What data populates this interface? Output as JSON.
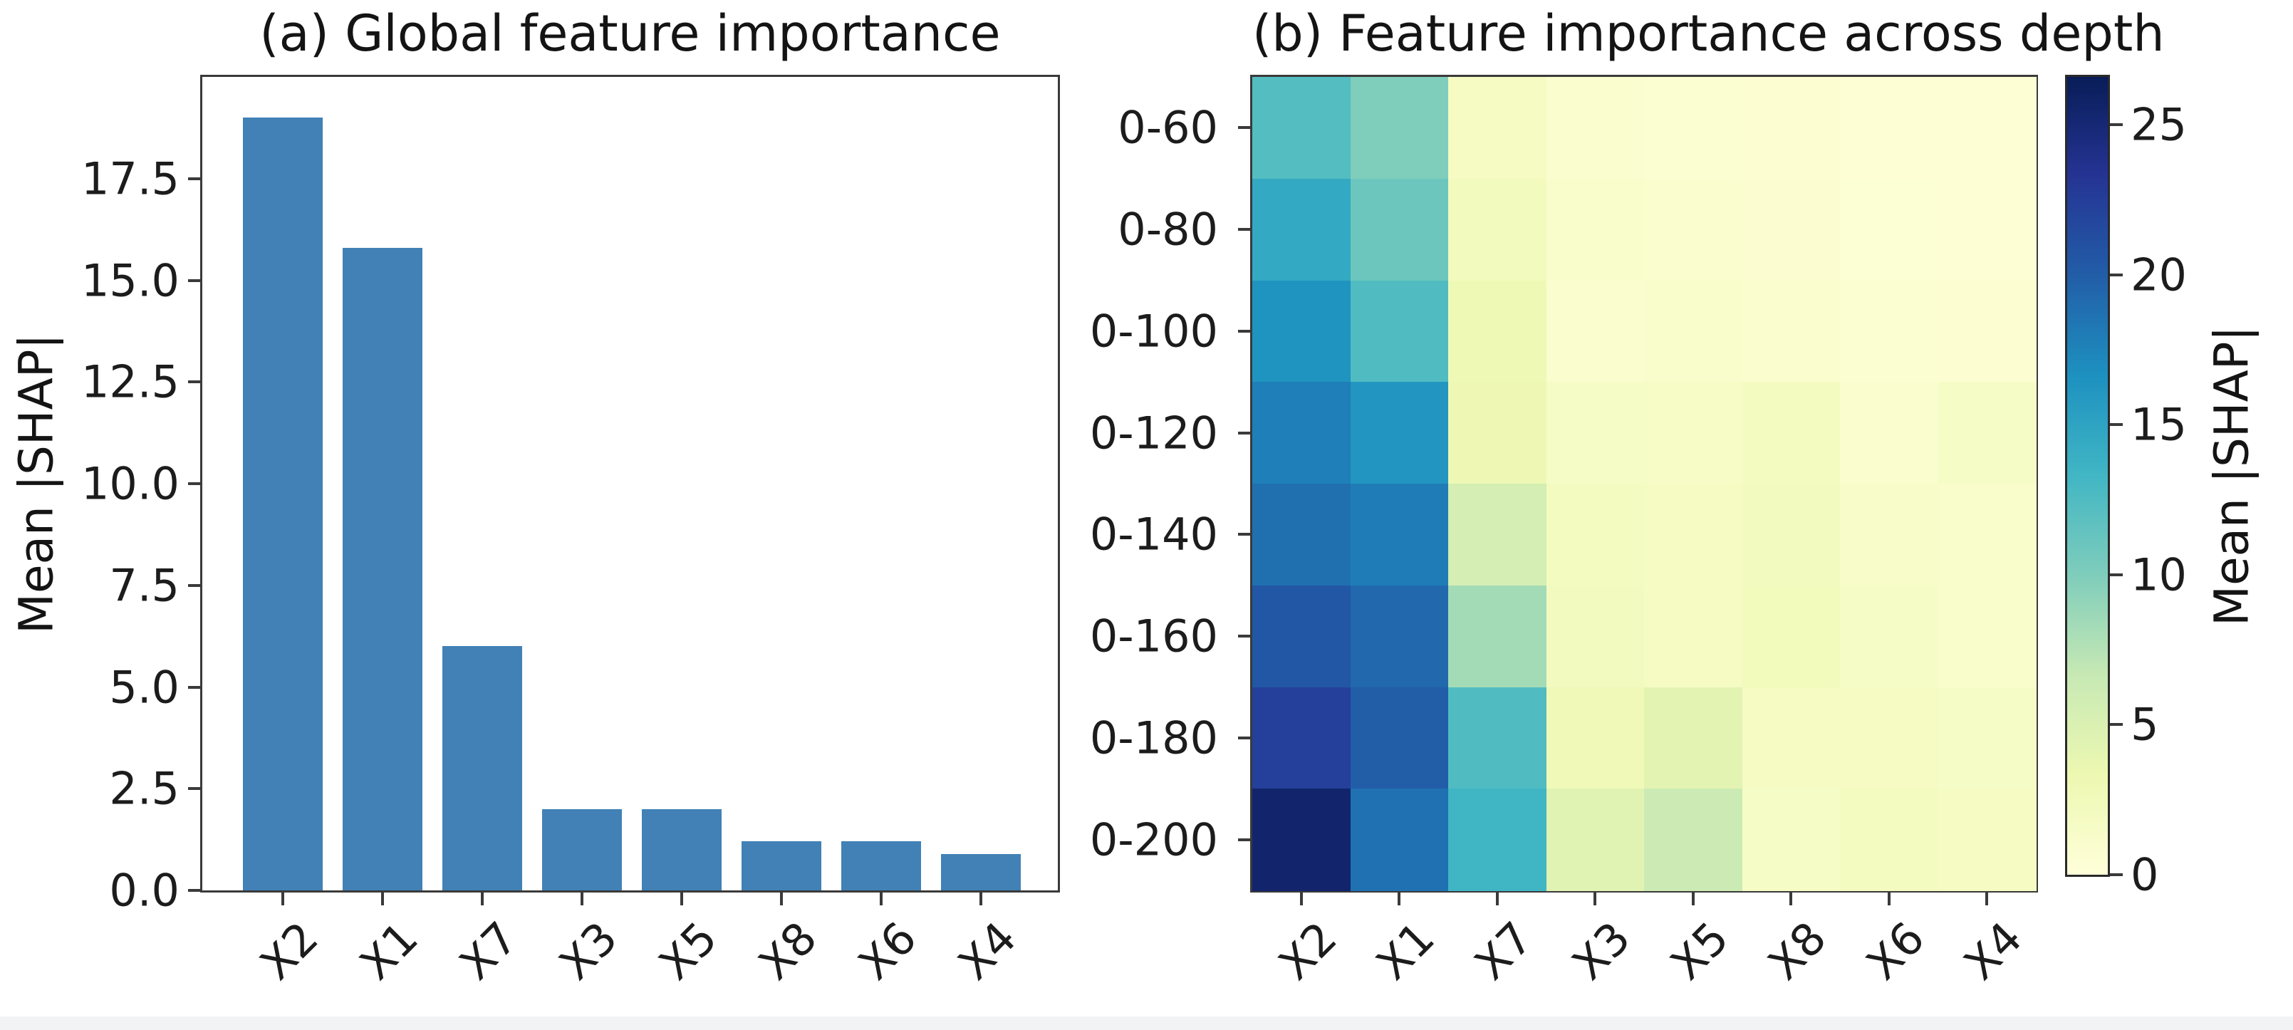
{
  "colors": {
    "background": "#ffffff",
    "bar_fill": "#4181b6",
    "spine": "#3a3a3a",
    "text": "#1a1a1a",
    "footer_strip": "#f2f3f5"
  },
  "chart_data": [
    {
      "type": "bar",
      "panel": "a",
      "title": "(a) Global feature importance",
      "xlabel": "",
      "ylabel": "Mean |SHAP|",
      "categories": [
        "X2",
        "X1",
        "X7",
        "X3",
        "X5",
        "X8",
        "X6",
        "X4"
      ],
      "values": [
        19.0,
        15.8,
        6.0,
        2.0,
        2.0,
        1.2,
        1.2,
        0.9
      ],
      "ylim": [
        0,
        20
      ],
      "ytick_labels": [
        "0.0",
        "2.5",
        "5.0",
        "7.5",
        "10.0",
        "12.5",
        "15.0",
        "17.5"
      ],
      "ytick_values": [
        0,
        2.5,
        5,
        7.5,
        10,
        12.5,
        15,
        17.5
      ],
      "grid": false,
      "bar_color": "#4181b6"
    },
    {
      "type": "heatmap",
      "panel": "b",
      "title": "(b) Feature importance across depth",
      "columns": [
        "X2",
        "X1",
        "X7",
        "X3",
        "X5",
        "X8",
        "X6",
        "X4"
      ],
      "rows": [
        "0-60",
        "0-80",
        "0-100",
        "0-120",
        "0-140",
        "0-160",
        "0-180",
        "0-200"
      ],
      "values": [
        [
          12.3,
          10.0,
          1.8,
          0.9,
          0.7,
          0.55,
          0.4,
          0.4
        ],
        [
          14.5,
          11.0,
          2.3,
          1.1,
          0.9,
          0.75,
          0.5,
          0.45
        ],
        [
          16.4,
          12.5,
          2.9,
          1.0,
          1.2,
          1.0,
          0.65,
          0.6
        ],
        [
          17.8,
          16.2,
          3.1,
          1.6,
          1.5,
          2.0,
          1.0,
          1.6
        ],
        [
          18.8,
          18.0,
          5.5,
          2.0,
          1.8,
          2.2,
          1.3,
          1.2
        ],
        [
          20.5,
          19.3,
          8.3,
          2.2,
          1.9,
          2.4,
          1.6,
          1.2
        ],
        [
          22.3,
          20.0,
          12.5,
          2.8,
          4.2,
          1.9,
          1.8,
          1.6
        ],
        [
          25.5,
          18.7,
          13.4,
          4.4,
          6.2,
          1.6,
          2.0,
          1.8
        ]
      ],
      "colormap": "YlGnBu",
      "colormap_anchors": [
        "#ffffd9",
        "#edf8b1",
        "#c7e9b4",
        "#7fcdbb",
        "#41b6c4",
        "#1d91c0",
        "#225ea8",
        "#253494",
        "#081d58"
      ],
      "vmin": 0,
      "vmax": 26.6,
      "colorbar": {
        "label": "Mean |SHAP|",
        "ticks": [
          0,
          5,
          10,
          15,
          20,
          25
        ]
      }
    }
  ]
}
